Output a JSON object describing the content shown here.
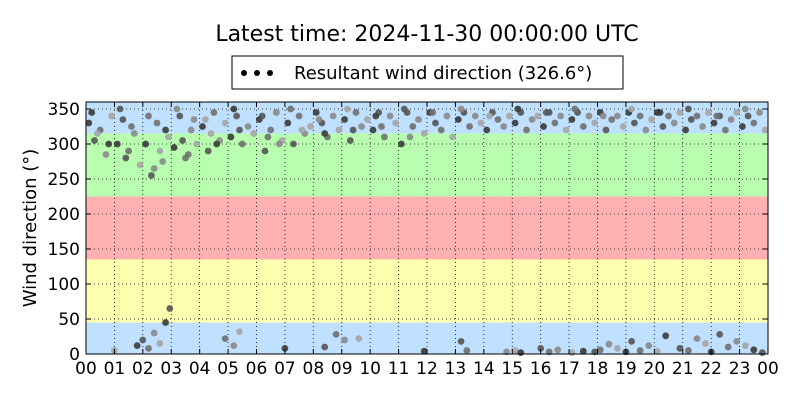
{
  "chart_data": {
    "type": "scatter",
    "title": "Latest time: 2024-11-30 00:00:00 UTC",
    "xlabel": "",
    "ylabel": "Wind direction (°)",
    "x_unit": "hour (UTC)",
    "xlim": [
      0,
      24
    ],
    "ylim": [
      0,
      360
    ],
    "x_ticks": [
      "00",
      "01",
      "02",
      "03",
      "04",
      "05",
      "06",
      "07",
      "08",
      "09",
      "10",
      "11",
      "12",
      "13",
      "14",
      "15",
      "16",
      "17",
      "18",
      "19",
      "20",
      "21",
      "22",
      "23",
      "00"
    ],
    "y_ticks": [
      "0",
      "50",
      "100",
      "150",
      "200",
      "250",
      "300",
      "350"
    ],
    "y_tick_values": [
      0,
      50,
      100,
      150,
      200,
      250,
      300,
      350
    ],
    "grid": true,
    "legend": {
      "entries": [
        "Resultant wind direction (326.6°)"
      ],
      "placement": "top-center"
    },
    "background_bands": [
      {
        "from": 0,
        "to": 45,
        "color": "#c0e0ff"
      },
      {
        "from": 45,
        "to": 135,
        "color": "#ffffb0"
      },
      {
        "from": 135,
        "to": 225,
        "color": "#ffb0b0"
      },
      {
        "from": 225,
        "to": 315,
        "color": "#b8ffb0"
      },
      {
        "from": 315,
        "to": 360,
        "color": "#c0e0ff"
      }
    ],
    "point_colors": [
      "#3a3a3a",
      "#555555",
      "#707070",
      "#8a8a8a",
      "#a5a5a5"
    ],
    "series": [
      {
        "name": "Resultant wind direction (326.6°)",
        "points": [
          [
            0.1,
            330
          ],
          [
            0.3,
            305
          ],
          [
            0.5,
            320
          ],
          [
            0.7,
            285
          ],
          [
            0.9,
            340
          ],
          [
            1.1,
            300
          ],
          [
            1.3,
            335
          ],
          [
            1.5,
            290
          ],
          [
            1.7,
            315
          ],
          [
            1.9,
            270
          ],
          [
            2.1,
            300
          ],
          [
            2.3,
            255
          ],
          [
            2.5,
            330
          ],
          [
            2.7,
            275
          ],
          [
            2.9,
            310
          ],
          [
            3.1,
            295
          ],
          [
            3.3,
            340
          ],
          [
            3.5,
            280
          ],
          [
            3.7,
            320
          ],
          [
            3.9,
            300
          ],
          [
            4.1,
            325
          ],
          [
            4.3,
            290
          ],
          [
            4.5,
            345
          ],
          [
            4.7,
            305
          ],
          [
            4.9,
            330
          ],
          [
            5.1,
            310
          ],
          [
            5.3,
            340
          ],
          [
            5.5,
            300
          ],
          [
            5.7,
            325
          ],
          [
            5.9,
            315
          ],
          [
            6.1,
            335
          ],
          [
            6.3,
            290
          ],
          [
            6.5,
            320
          ],
          [
            6.7,
            345
          ],
          [
            6.9,
            305
          ],
          [
            7.1,
            330
          ],
          [
            7.3,
            300
          ],
          [
            7.5,
            340
          ],
          [
            7.7,
            315
          ],
          [
            7.9,
            325
          ],
          [
            8.1,
            345
          ],
          [
            8.3,
            330
          ],
          [
            8.5,
            310
          ],
          [
            8.7,
            340
          ],
          [
            8.9,
            320
          ],
          [
            9.1,
            335
          ],
          [
            9.3,
            305
          ],
          [
            9.5,
            345
          ],
          [
            9.7,
            325
          ],
          [
            9.9,
            335
          ],
          [
            10.1,
            320
          ],
          [
            10.3,
            345
          ],
          [
            10.5,
            310
          ],
          [
            10.7,
            340
          ],
          [
            10.9,
            330
          ],
          [
            11.1,
            300
          ],
          [
            11.3,
            345
          ],
          [
            11.5,
            325
          ],
          [
            11.7,
            335
          ],
          [
            11.9,
            315
          ],
          [
            12.1,
            345
          ],
          [
            12.3,
            330
          ],
          [
            12.5,
            320
          ],
          [
            12.7,
            340
          ],
          [
            12.9,
            310
          ],
          [
            13.1,
            335
          ],
          [
            13.3,
            345
          ],
          [
            13.5,
            325
          ],
          [
            13.7,
            340
          ],
          [
            13.9,
            330
          ],
          [
            14.1,
            320
          ],
          [
            14.3,
            345
          ],
          [
            14.5,
            335
          ],
          [
            14.7,
            325
          ],
          [
            14.9,
            340
          ],
          [
            15.1,
            330
          ],
          [
            15.3,
            345
          ],
          [
            15.5,
            320
          ],
          [
            15.7,
            335
          ],
          [
            15.9,
            340
          ],
          [
            16.1,
            325
          ],
          [
            16.3,
            345
          ],
          [
            16.5,
            330
          ],
          [
            16.7,
            340
          ],
          [
            16.9,
            320
          ],
          [
            17.1,
            335
          ],
          [
            17.3,
            345
          ],
          [
            17.5,
            325
          ],
          [
            17.7,
            340
          ],
          [
            17.9,
            330
          ],
          [
            18.1,
            345
          ],
          [
            18.3,
            320
          ],
          [
            18.5,
            335
          ],
          [
            18.7,
            340
          ],
          [
            18.9,
            325
          ],
          [
            19.1,
            345
          ],
          [
            19.3,
            330
          ],
          [
            19.5,
            340
          ],
          [
            19.7,
            320
          ],
          [
            19.9,
            335
          ],
          [
            20.1,
            345
          ],
          [
            20.3,
            325
          ],
          [
            20.5,
            340
          ],
          [
            20.7,
            330
          ],
          [
            20.9,
            345
          ],
          [
            21.1,
            320
          ],
          [
            21.3,
            335
          ],
          [
            21.5,
            340
          ],
          [
            21.7,
            325
          ],
          [
            21.9,
            345
          ],
          [
            22.1,
            330
          ],
          [
            22.3,
            340
          ],
          [
            22.5,
            320
          ],
          [
            22.7,
            335
          ],
          [
            22.9,
            345
          ],
          [
            23.1,
            325
          ],
          [
            23.3,
            340
          ],
          [
            23.5,
            330
          ],
          [
            23.7,
            345
          ],
          [
            23.9,
            320
          ],
          [
            0.2,
            345
          ],
          [
            1.2,
            350
          ],
          [
            2.2,
            340
          ],
          [
            3.2,
            350
          ],
          [
            4.2,
            335
          ],
          [
            5.2,
            350
          ],
          [
            6.2,
            340
          ],
          [
            7.2,
            350
          ],
          [
            8.2,
            335
          ],
          [
            9.2,
            350
          ],
          [
            10.2,
            340
          ],
          [
            11.2,
            350
          ],
          [
            12.2,
            345
          ],
          [
            13.2,
            350
          ],
          [
            14.2,
            340
          ],
          [
            15.2,
            350
          ],
          [
            16.2,
            345
          ],
          [
            17.2,
            350
          ],
          [
            18.2,
            340
          ],
          [
            19.2,
            350
          ],
          [
            20.2,
            345
          ],
          [
            21.2,
            350
          ],
          [
            22.2,
            340
          ],
          [
            23.2,
            350
          ],
          [
            0.4,
            315
          ],
          [
            0.8,
            300
          ],
          [
            1.4,
            280
          ],
          [
            1.6,
            325
          ],
          [
            2.4,
            265
          ],
          [
            2.6,
            290
          ],
          [
            2.8,
            320
          ],
          [
            3.4,
            305
          ],
          [
            3.6,
            285
          ],
          [
            3.8,
            335
          ],
          [
            4.4,
            315
          ],
          [
            4.6,
            300
          ],
          [
            5.4,
            320
          ],
          [
            6.4,
            310
          ],
          [
            6.8,
            300
          ],
          [
            7.6,
            320
          ],
          [
            8.4,
            315
          ],
          [
            9.4,
            320
          ],
          [
            10.4,
            325
          ],
          [
            11.4,
            310
          ],
          [
            1.0,
            5
          ],
          [
            1.8,
            12
          ],
          [
            2.0,
            20
          ],
          [
            2.2,
            8
          ],
          [
            2.4,
            30
          ],
          [
            2.6,
            15
          ],
          [
            2.8,
            45
          ],
          [
            2.95,
            65
          ],
          [
            4.9,
            22
          ],
          [
            5.2,
            12
          ],
          [
            5.4,
            32
          ],
          [
            7.0,
            8
          ],
          [
            8.4,
            10
          ],
          [
            8.8,
            28
          ],
          [
            9.1,
            20
          ],
          [
            9.6,
            22
          ],
          [
            11.9,
            4
          ],
          [
            13.2,
            18
          ],
          [
            13.4,
            5
          ],
          [
            14.8,
            3
          ],
          [
            15.1,
            5
          ],
          [
            15.3,
            2
          ],
          [
            16.0,
            8
          ],
          [
            16.3,
            3
          ],
          [
            16.6,
            6
          ],
          [
            17.1,
            2
          ],
          [
            17.5,
            4
          ],
          [
            17.9,
            3
          ],
          [
            18.1,
            6
          ],
          [
            18.4,
            14
          ],
          [
            18.7,
            8
          ],
          [
            19.0,
            3
          ],
          [
            19.2,
            18
          ],
          [
            19.5,
            5
          ],
          [
            19.8,
            12
          ],
          [
            20.1,
            4
          ],
          [
            20.4,
            26
          ],
          [
            20.9,
            8
          ],
          [
            21.2,
            5
          ],
          [
            21.5,
            22
          ],
          [
            21.8,
            15
          ],
          [
            22.0,
            3
          ],
          [
            22.3,
            28
          ],
          [
            22.6,
            10
          ],
          [
            22.9,
            18
          ],
          [
            23.2,
            12
          ],
          [
            23.5,
            6
          ],
          [
            23.8,
            2
          ]
        ]
      }
    ]
  }
}
